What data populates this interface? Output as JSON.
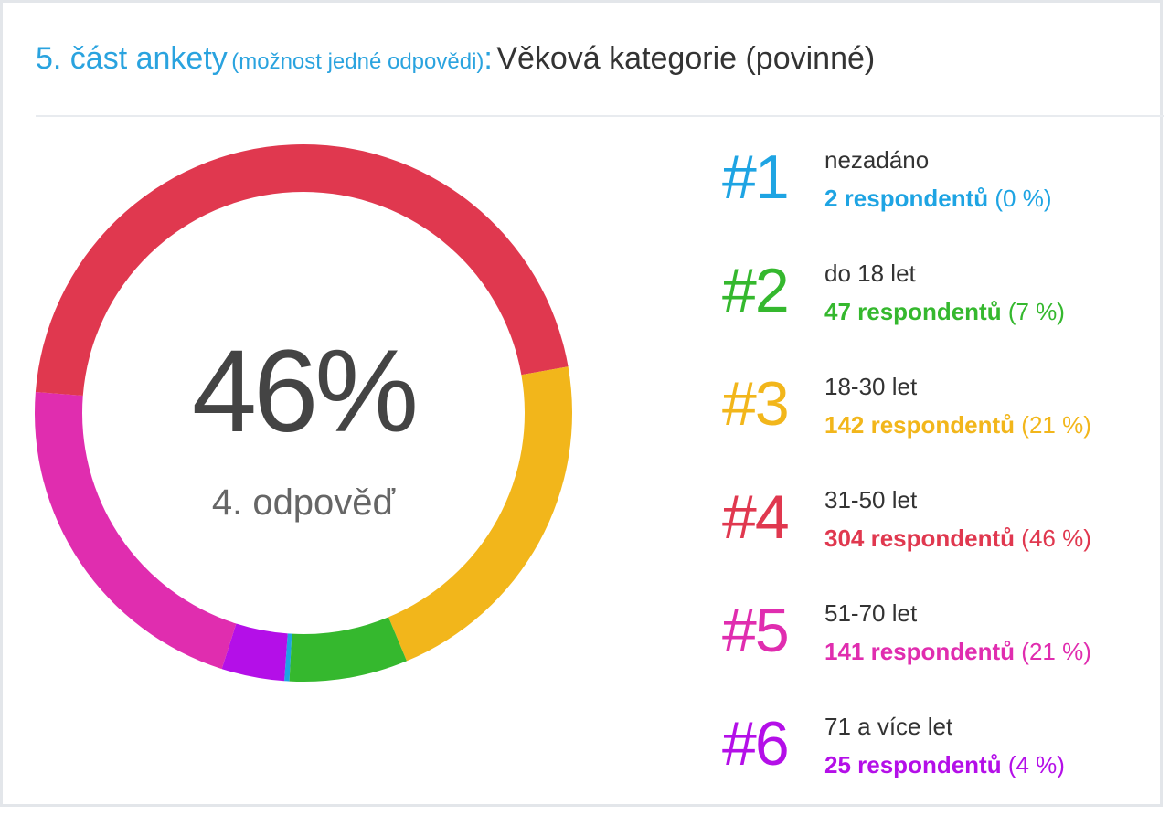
{
  "header": {
    "question_number": "5. část ankety",
    "note": "(možnost jedné odpovědi)",
    "colon": ":",
    "title": "Věková kategorie (povinné)"
  },
  "center": {
    "value": "46%",
    "label": "4. odpověď"
  },
  "chart_data": {
    "type": "pie",
    "title": "",
    "categories": [
      "nezadáno",
      "do 18 let",
      "18-30 let",
      "31-50 let",
      "51-70 let",
      "71 a více let"
    ],
    "values": [
      2,
      47,
      142,
      304,
      141,
      25
    ],
    "percent": [
      0,
      7,
      21,
      46,
      21,
      4
    ],
    "colors": [
      "#1ea4e3",
      "#35b82e",
      "#f2b61b",
      "#e0384f",
      "#e02daf",
      "#b40fe8"
    ]
  },
  "legend": [
    {
      "rank": "#1",
      "label": "nezadáno",
      "count": "2 respondentů",
      "pct": "(0 %)",
      "color": "#1ea4e3"
    },
    {
      "rank": "#2",
      "label": "do 18 let",
      "count": "47 respondentů",
      "pct": "(7 %)",
      "color": "#35b82e"
    },
    {
      "rank": "#3",
      "label": "18-30 let",
      "count": "142 respondentů",
      "pct": "(21 %)",
      "color": "#f2b61b"
    },
    {
      "rank": "#4",
      "label": "31-50 let",
      "count": "304 respondentů",
      "pct": "(46 %)",
      "color": "#e0384f"
    },
    {
      "rank": "#5",
      "label": "51-70 let",
      "count": "141 respondentů",
      "pct": "(21 %)",
      "color": "#e02daf"
    },
    {
      "rank": "#6",
      "label": "71 a více let",
      "count": "25 respondentů",
      "pct": "(4 %)",
      "color": "#b40fe8"
    }
  ]
}
